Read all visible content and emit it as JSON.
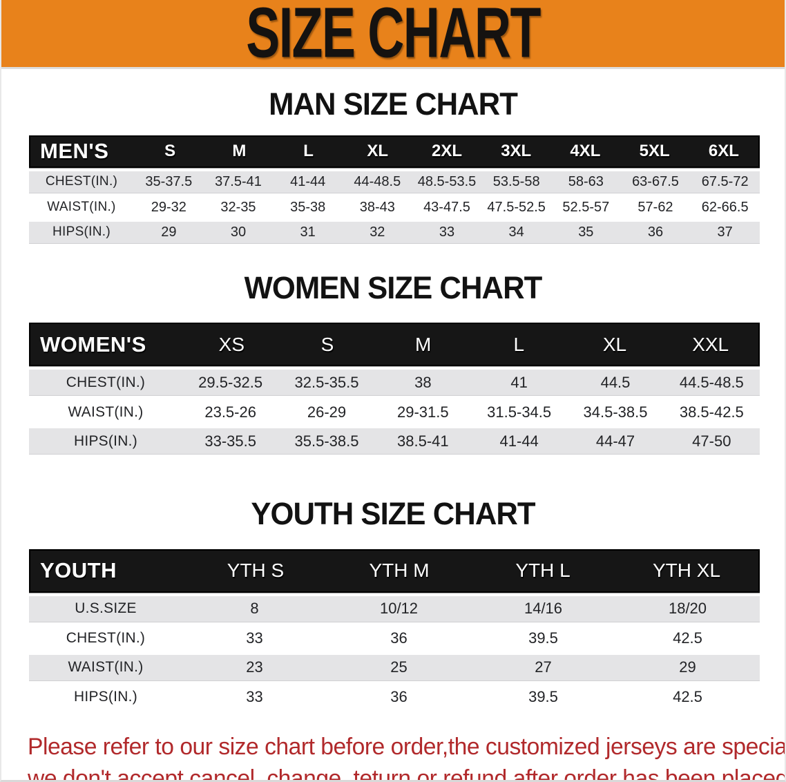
{
  "banner": {
    "title": "SIZE CHART"
  },
  "colors": {
    "banner_bg": "#E8821B",
    "header_bar": "#161616",
    "row_stripe": "#E4E4E6",
    "disclaimer_text": "#B1292B"
  },
  "sections": [
    {
      "title": "MAN SIZE CHART",
      "header_label": "MEN'S",
      "columns": [
        "S",
        "M",
        "L",
        "XL",
        "2XL",
        "3XL",
        "4XL",
        "5XL",
        "6XL"
      ],
      "rows": [
        {
          "label": "CHEST(IN.)",
          "values": [
            "35-37.5",
            "37.5-41",
            "41-44",
            "44-48.5",
            "48.5-53.5",
            "53.5-58",
            "58-63",
            "63-67.5",
            "67.5-72"
          ]
        },
        {
          "label": "WAIST(IN.)",
          "values": [
            "29-32",
            "32-35",
            "35-38",
            "38-43",
            "43-47.5",
            "47.5-52.5",
            "52.5-57",
            "57-62",
            "62-66.5"
          ]
        },
        {
          "label": "HIPS(IN.)",
          "values": [
            "29",
            "30",
            "31",
            "32",
            "33",
            "34",
            "35",
            "36",
            "37"
          ]
        }
      ]
    },
    {
      "title": "WOMEN SIZE CHART",
      "header_label": "WOMEN'S",
      "columns": [
        "XS",
        "S",
        "M",
        "L",
        "XL",
        "XXL"
      ],
      "rows": [
        {
          "label": "CHEST(IN.)",
          "values": [
            "29.5-32.5",
            "32.5-35.5",
            "38",
            "41",
            "44.5",
            "44.5-48.5"
          ]
        },
        {
          "label": "WAIST(IN.)",
          "values": [
            "23.5-26",
            "26-29",
            "29-31.5",
            "31.5-34.5",
            "34.5-38.5",
            "38.5-42.5"
          ]
        },
        {
          "label": "HIPS(IN.)",
          "values": [
            "33-35.5",
            "35.5-38.5",
            "38.5-41",
            "41-44",
            "44-47",
            "47-50"
          ]
        }
      ]
    },
    {
      "title": "YOUTH SIZE CHART",
      "header_label": "YOUTH",
      "columns": [
        "YTH S",
        "YTH M",
        "YTH L",
        "YTH XL"
      ],
      "rows": [
        {
          "label": "U.S.SIZE",
          "values": [
            "8",
            "10/12",
            "14/16",
            "18/20"
          ]
        },
        {
          "label": "CHEST(IN.)",
          "values": [
            "33",
            "36",
            "39.5",
            "42.5"
          ]
        },
        {
          "label": "WAIST(IN.)",
          "values": [
            "23",
            "25",
            "27",
            "29"
          ]
        },
        {
          "label": "HIPS(IN.)",
          "values": [
            "33",
            "36",
            "39.5",
            "42.5"
          ]
        }
      ]
    }
  ],
  "disclaimer": {
    "line1": "Please refer to our size chart before order,the customized jerseys are special products,",
    "line2": "we don't accept cancel, change, teturn or refund after order has been placed!"
  }
}
